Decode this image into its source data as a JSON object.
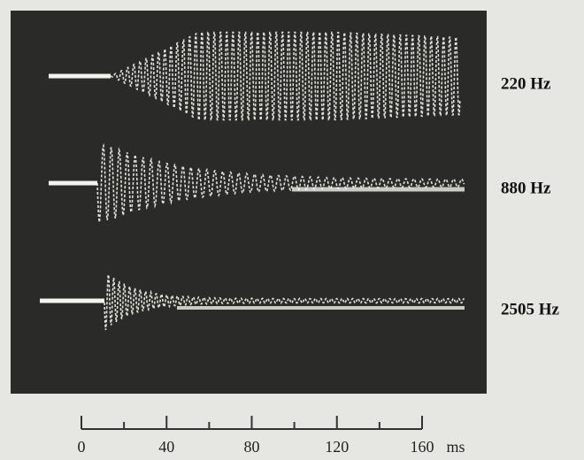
{
  "traces": [
    {
      "label": "220 Hz"
    },
    {
      "label": "880 Hz"
    },
    {
      "label": "2505 Hz"
    }
  ],
  "time_axis": {
    "ticks": [
      0,
      40,
      80,
      120,
      160
    ],
    "unit": "ms"
  }
}
